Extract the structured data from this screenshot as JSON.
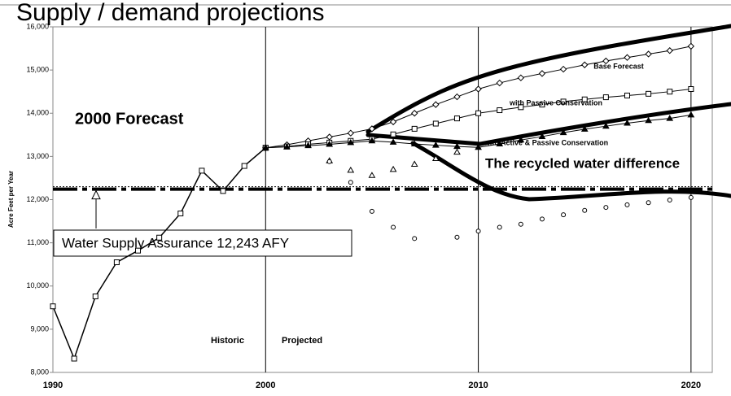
{
  "chart_data": {
    "type": "line",
    "title": "Supply / demand projections",
    "y_label": "Acre Feet per Year",
    "xlim": [
      1990,
      2021
    ],
    "xticks": [
      1990,
      2000,
      2010,
      2020
    ],
    "ylim": [
      8000,
      16000
    ],
    "yticks": [
      {
        "value": 8000,
        "label": "8,000"
      },
      {
        "value": 9000,
        "label": "9,000"
      },
      {
        "value": 10000,
        "label": "10,000"
      },
      {
        "value": 11000,
        "label": "11,000"
      },
      {
        "value": 12000,
        "label": "12,000"
      },
      {
        "value": 13000,
        "label": "13,000"
      },
      {
        "value": 14000,
        "label": "14,000"
      },
      {
        "value": 15000,
        "label": "15,000"
      },
      {
        "value": 16000,
        "label": "16,000"
      }
    ],
    "annotations": [
      "2000 Forecast",
      "The recycled water difference",
      "Historic",
      "Projected"
    ],
    "reference_line": {
      "value": 12243,
      "label": "Water Supply Assurance 12,243 AFY"
    },
    "series": [
      {
        "name": null,
        "color": "#000000",
        "x": [
          1990,
          1991,
          1992,
          1993,
          1994,
          1995,
          1996,
          1997,
          1998,
          1999,
          2000
        ],
        "values": [
          9530,
          8320,
          9760,
          10550,
          10820,
          11120,
          11680,
          12670,
          12200,
          12780,
          13200
        ]
      },
      {
        "name": "Base Forecast",
        "color": "#000000",
        "x": [
          2000,
          2001,
          2002,
          2003,
          2004,
          2005,
          2006,
          2007,
          2008,
          2009,
          2010,
          2011,
          2012,
          2013,
          2014,
          2015,
          2016,
          2017,
          2018,
          2019,
          2020
        ],
        "values": [
          13200,
          13270,
          13360,
          13450,
          13540,
          13640,
          13800,
          14000,
          14200,
          14380,
          14560,
          14700,
          14820,
          14920,
          15020,
          15120,
          15210,
          15290,
          15370,
          15450,
          15550
        ]
      },
      {
        "name": "with Passive Conservation",
        "color": "#000000",
        "x": [
          2000,
          2001,
          2002,
          2003,
          2004,
          2005,
          2006,
          2007,
          2008,
          2009,
          2010,
          2011,
          2012,
          2013,
          2014,
          2015,
          2016,
          2017,
          2018,
          2019,
          2020
        ],
        "values": [
          13200,
          13230,
          13280,
          13320,
          13360,
          13400,
          13510,
          13640,
          13760,
          13880,
          14000,
          14070,
          14140,
          14200,
          14270,
          14320,
          14370,
          14410,
          14450,
          14500,
          14560
        ]
      },
      {
        "name": "with Active & Passive Conservation",
        "color": "#000000",
        "x": [
          2000,
          2001,
          2002,
          2003,
          2004,
          2005,
          2006,
          2007,
          2008,
          2009,
          2010,
          2011,
          2012,
          2013,
          2014,
          2015,
          2016,
          2017,
          2018,
          2019,
          2020
        ],
        "values": [
          13200,
          13220,
          13250,
          13280,
          13320,
          13360,
          13330,
          13290,
          13260,
          13230,
          13210,
          13290,
          13380,
          13460,
          13550,
          13630,
          13700,
          13770,
          13830,
          13880,
          13960
        ]
      },
      {
        "name": null,
        "color": "#000000",
        "x": [
          2003,
          2004,
          2005,
          2006,
          2007,
          2008,
          2009
        ],
        "values": [
          12900,
          12680,
          12560,
          12700,
          12820,
          12950,
          13100
        ]
      },
      {
        "name": null,
        "color": "#000000",
        "x": [
          2003,
          2004,
          2005,
          2006,
          2007,
          2008,
          2009,
          2010,
          2011,
          2012,
          2013,
          2014,
          2015,
          2016,
          2017,
          2018,
          2019,
          2020
        ],
        "values": [
          12880,
          12400,
          11730,
          11360,
          11100,
          null,
          11130,
          11270,
          11360,
          11430,
          11550,
          11650,
          11750,
          11820,
          11880,
          11930,
          11990,
          12050
        ]
      }
    ]
  }
}
